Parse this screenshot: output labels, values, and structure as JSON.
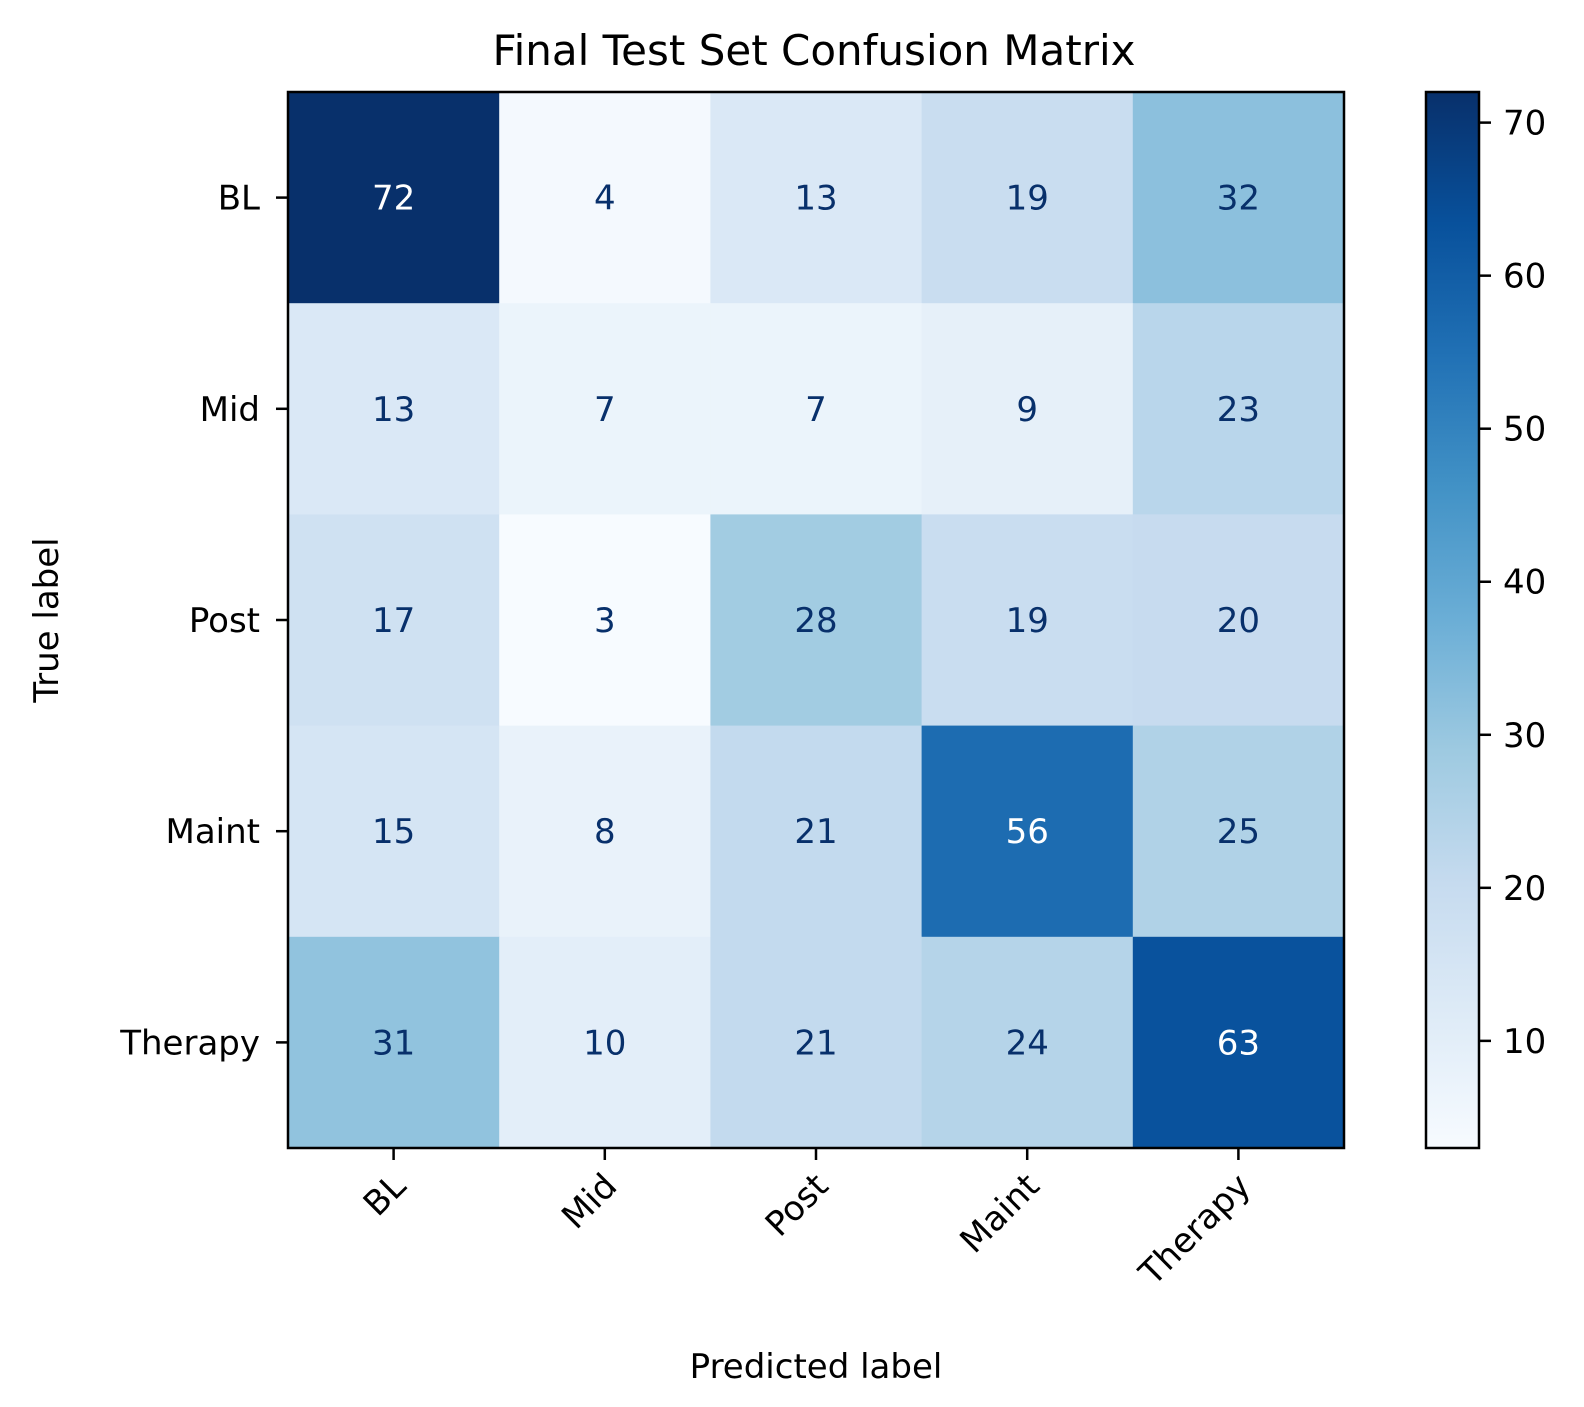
{
  "chart_data": {
    "type": "heatmap",
    "title": "Final Test Set Confusion Matrix",
    "xlabel": "Predicted label",
    "ylabel": "True label",
    "x_categories": [
      "BL",
      "Mid",
      "Post",
      "Maint",
      "Therapy"
    ],
    "y_categories": [
      "BL",
      "Mid",
      "Post",
      "Maint",
      "Therapy"
    ],
    "values": [
      [
        72,
        4,
        13,
        19,
        32
      ],
      [
        13,
        7,
        7,
        9,
        23
      ],
      [
        17,
        3,
        28,
        19,
        20
      ],
      [
        15,
        8,
        21,
        56,
        25
      ],
      [
        31,
        10,
        21,
        24,
        63
      ]
    ],
    "colormap": "Blues",
    "color_range": [
      3,
      72
    ],
    "colorbar_ticks": [
      10,
      20,
      30,
      40,
      50,
      60,
      70
    ],
    "text_colors": {
      "dark": "#08306b",
      "light": "#ffffff"
    }
  }
}
